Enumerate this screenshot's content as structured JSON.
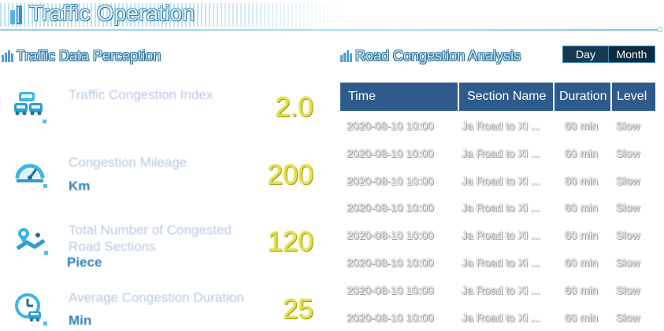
{
  "header": {
    "title": "Traffic Operation"
  },
  "left": {
    "title": "Traffic Data Perception",
    "metrics": [
      {
        "label": "Traffic Congestion Index",
        "unit": "",
        "value": "2.0",
        "icon": "car-congestion-icon"
      },
      {
        "label": "Congestion Mileage",
        "unit": "Km",
        "value": "200",
        "icon": "speedometer-icon"
      },
      {
        "label": "Total Number of Congested Road Sections",
        "unit": "Piece",
        "value": "120",
        "icon": "road-sections-icon"
      },
      {
        "label": "Average Congestion Duration",
        "unit": "Min",
        "value": "25",
        "icon": "clock-car-icon"
      }
    ]
  },
  "right": {
    "title": "Road Congestion Analysis",
    "toggle": {
      "day": "Day",
      "month": "Month",
      "selected": "Day"
    },
    "table": {
      "headers": [
        "Time",
        "Section Name",
        "Duration",
        "Level"
      ],
      "rows": [
        [
          "2020-08-10 10:00",
          "Ja Road to Xi ...",
          "60 min",
          "Slow"
        ],
        [
          "2020-08-10 10:00",
          "Ja Road to Xi ...",
          "60 min",
          "Slow"
        ],
        [
          "2020-08-10 10:00",
          "Ja Road to Xi ...",
          "60 min",
          "Slow"
        ],
        [
          "2020-08-10 10:00",
          "Ja Road to Xi ...",
          "60 min",
          "Slow"
        ],
        [
          "2020-08-10 10:00",
          "Ja Road to Xi ...",
          "60 min",
          "Slow"
        ],
        [
          "2020-08-10 10:00",
          "Ja Road to Xi ...",
          "60 min",
          "Slow"
        ],
        [
          "2020-08-10 10:00",
          "Ja Road to Xi ...",
          "60 min",
          "Slow"
        ],
        [
          "2020-08-10 10:00",
          "Ja Road to Xi ...",
          "60 min",
          "Slow"
        ]
      ]
    }
  },
  "colors": {
    "accent": "#2e5b8c",
    "value": "#e4e03a",
    "unit": "#2f7fb8",
    "label": "#b8c7e0"
  }
}
